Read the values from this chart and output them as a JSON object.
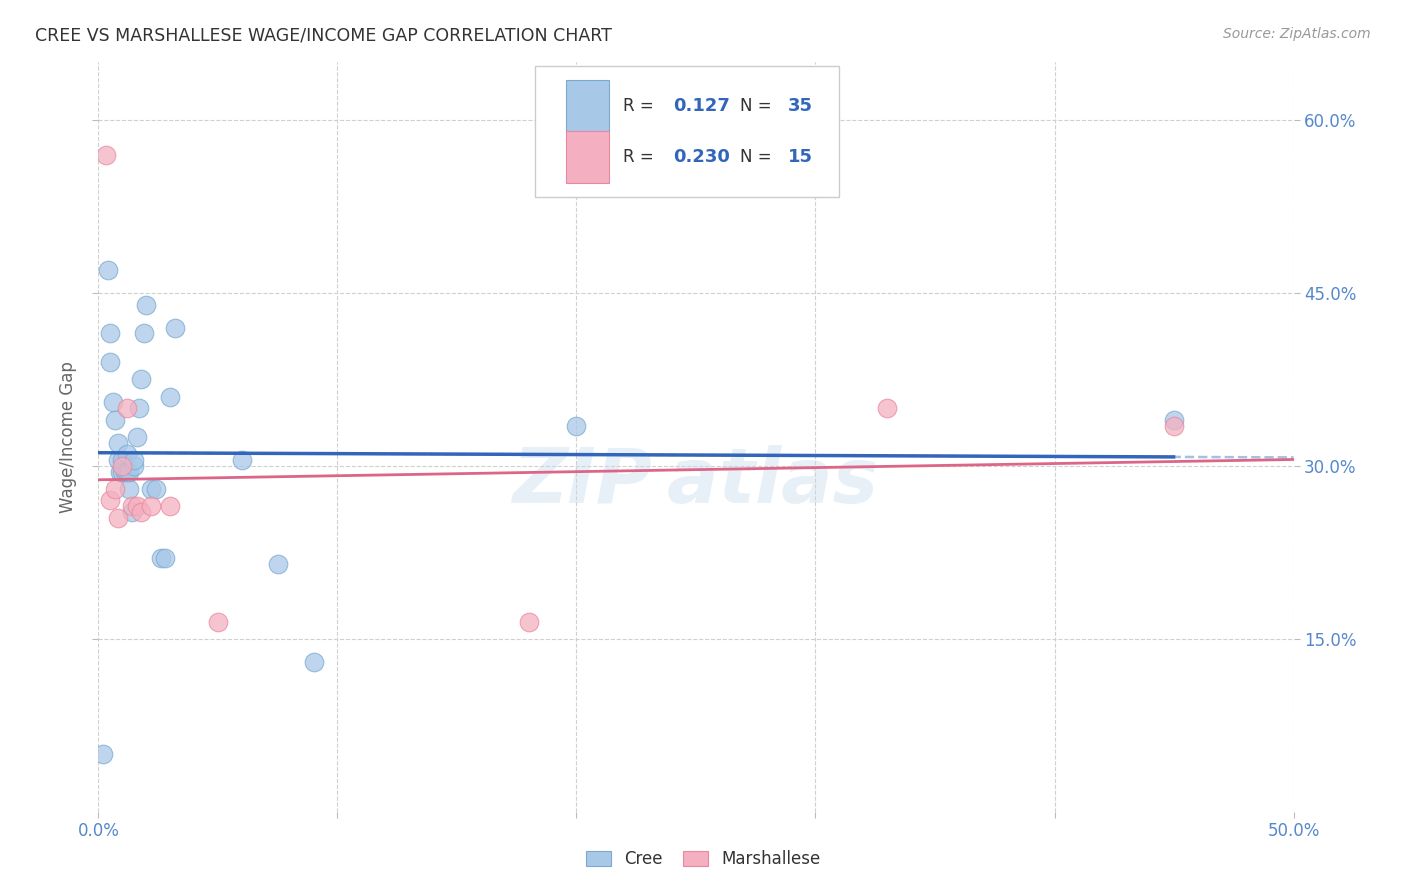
{
  "title": "CREE VS MARSHALLESE WAGE/INCOME GAP CORRELATION CHART",
  "source": "Source: ZipAtlas.com",
  "ylabel": "Wage/Income Gap",
  "watermark": "ZIPatlas",
  "xlim": [
    0.0,
    0.5
  ],
  "ylim": [
    0.0,
    0.65
  ],
  "xticks": [
    0.0,
    0.1,
    0.2,
    0.3,
    0.4,
    0.5
  ],
  "xtick_labels": [
    "0.0%",
    "",
    "",
    "",
    "",
    "50.0%"
  ],
  "ytick_positions": [
    0.15,
    0.3,
    0.45,
    0.6
  ],
  "ytick_labels": [
    "15.0%",
    "30.0%",
    "45.0%",
    "60.0%"
  ],
  "cree_color": "#a8c8e8",
  "marshallese_color": "#f4b0c0",
  "cree_edge_color": "#7aaad0",
  "marshallese_edge_color": "#e888a0",
  "cree_line_color": "#3366bb",
  "marshallese_line_color": "#dd6688",
  "cree_dash_color": "#99bbdd",
  "R_cree": 0.127,
  "N_cree": 35,
  "R_marshallese": 0.23,
  "N_marshallese": 15,
  "cree_x": [
    0.002,
    0.004,
    0.005,
    0.005,
    0.006,
    0.007,
    0.008,
    0.008,
    0.009,
    0.01,
    0.01,
    0.011,
    0.012,
    0.012,
    0.013,
    0.013,
    0.014,
    0.015,
    0.015,
    0.016,
    0.017,
    0.018,
    0.019,
    0.02,
    0.022,
    0.024,
    0.026,
    0.028,
    0.03,
    0.032,
    0.06,
    0.075,
    0.09,
    0.2,
    0.45
  ],
  "cree_y": [
    0.05,
    0.47,
    0.415,
    0.39,
    0.355,
    0.34,
    0.305,
    0.32,
    0.295,
    0.295,
    0.305,
    0.295,
    0.295,
    0.31,
    0.28,
    0.295,
    0.26,
    0.3,
    0.305,
    0.325,
    0.35,
    0.375,
    0.415,
    0.44,
    0.28,
    0.28,
    0.22,
    0.22,
    0.36,
    0.42,
    0.305,
    0.215,
    0.13,
    0.335,
    0.34
  ],
  "marshallese_x": [
    0.003,
    0.005,
    0.007,
    0.008,
    0.01,
    0.012,
    0.014,
    0.016,
    0.018,
    0.022,
    0.03,
    0.05,
    0.18,
    0.33,
    0.45
  ],
  "marshallese_y": [
    0.57,
    0.27,
    0.28,
    0.255,
    0.3,
    0.35,
    0.265,
    0.265,
    0.26,
    0.265,
    0.265,
    0.165,
    0.165,
    0.35,
    0.335
  ],
  "background_color": "#ffffff",
  "grid_color": "#d0d0d0",
  "title_color": "#333333",
  "tick_color": "#5588cc",
  "ylabel_color": "#666666",
  "legend_value_color": "#3366bb",
  "legend_text_color": "#333333"
}
